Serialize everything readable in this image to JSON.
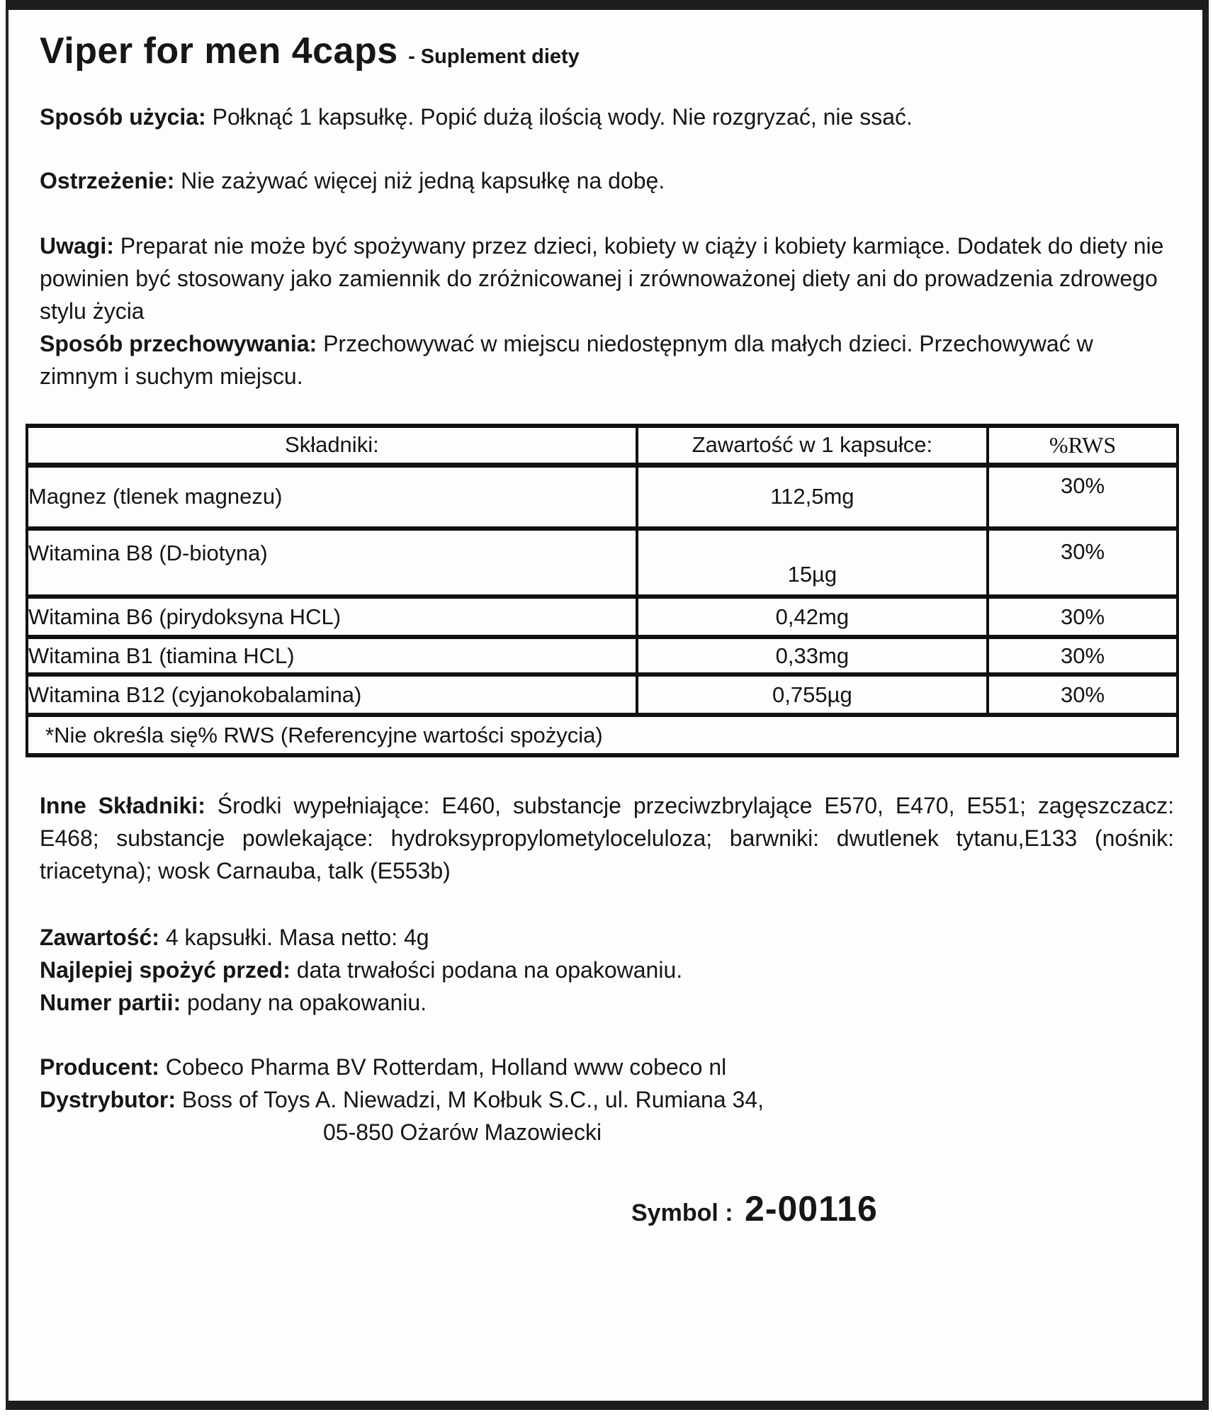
{
  "label": {
    "title": "Viper for men 4caps",
    "subtitle": "- Suplement diety"
  },
  "sections": {
    "usage": {
      "heading": "Sposób użycia:",
      "text": "Połknąć 1 kapsułkę. Popić dużą ilością wody. Nie rozgryzać, nie ssać."
    },
    "warning": {
      "heading": "Ostrzeżenie:",
      "text": "Nie zażywać więcej niż jedną kapsułkę na dobę."
    },
    "notes": {
      "heading": "Uwagi:",
      "text": "Preparat nie może być spożywany przez dzieci, kobiety w ciąży i kobiety karmiące. Dodatek do diety nie powinien być stosowany jako zamiennik do zróżnicowanej i zrównoważonej diety ani do prowadzenia zdrowego stylu życia"
    },
    "storage": {
      "heading": "Sposób przechowywania:",
      "text": "Przechowywać w miejscu niedostępnym dla małych dzieci. Przechowywać w zimnym i suchym miejscu."
    },
    "other_ingredients": {
      "heading": "Inne Składniki:",
      "text": "Środki wypełniające: E460, substancje przeciwzbrylające E570, E470, E551; zagęszczacz: E468; substancje powlekające: hydroksypropylometyloceluloza; barwniki: dwutlenek tytanu,E133 (nośnik: triacetyna); wosk Carnauba, talk (E553b)"
    },
    "contents": {
      "heading": "Zawartość:",
      "text": "4 kapsułki. Masa netto: 4g"
    },
    "best_before": {
      "heading": "Najlepiej spożyć przed:",
      "text": "data trwałości podana na opakowaniu."
    },
    "batch": {
      "heading": "Numer partii:",
      "text": "podany na opakowaniu."
    },
    "producer": {
      "heading": "Producent:",
      "text": "Cobeco Pharma BV Rotterdam, Holland www cobeco nl"
    },
    "distributor": {
      "heading": "Dystrybutor:",
      "text": "Boss of Toys A. Niewadzi, M Kołbuk S.C., ul. Rumiana 34,",
      "text2": "05-850 Ożarów Mazowiecki"
    },
    "symbol": {
      "heading": "Symbol :",
      "value": "2-00116"
    }
  },
  "table": {
    "headers": [
      "Składniki:",
      "Zawartość w 1 kapsułce:",
      "%RWS"
    ],
    "rows": [
      {
        "name": "Magnez (tlenek magnezu)",
        "amount": "112,5mg",
        "rws": "30%"
      },
      {
        "name": "Witamina B8 (D-biotyna)",
        "amount": "15µg",
        "rws": "30%"
      },
      {
        "name": "Witamina B6 (pirydoksyna HCL)",
        "amount": "0,42mg",
        "rws": "30%"
      },
      {
        "name": "Witamina B1 (tiamina HCL)",
        "amount": "0,33mg",
        "rws": "30%"
      },
      {
        "name": "Witamina B12 (cyjanokobalamina)",
        "amount": "0,755µg",
        "rws": "30%"
      }
    ],
    "footnote": "*Nie określa się% RWS (Referencyjne wartości spożycia)"
  },
  "colors": {
    "text": "#161616",
    "border": "#111111",
    "background": "#fdfdfd"
  }
}
